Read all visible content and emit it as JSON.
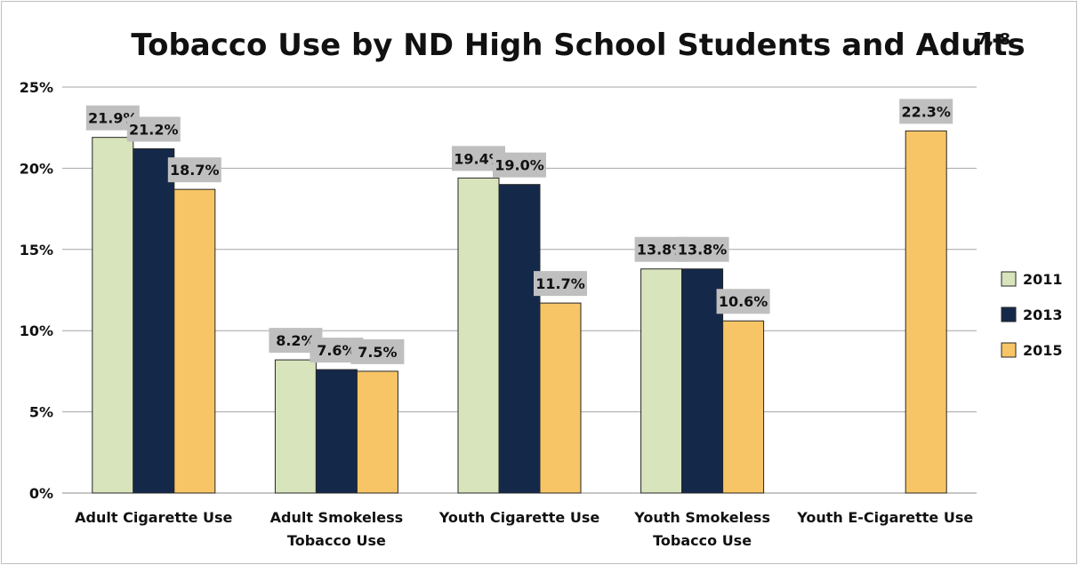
{
  "chart_data": {
    "type": "bar",
    "title": "Tobacco Use by ND High School Students and Adults",
    "title_superscript": "7, 8",
    "categories": [
      [
        "Adult Cigarette Use"
      ],
      [
        "Adult Smokeless",
        "Tobacco Use"
      ],
      [
        "Youth Cigarette Use"
      ],
      [
        "Youth Smokeless",
        "Tobacco Use"
      ],
      [
        "Youth E-Cigarette Use"
      ]
    ],
    "series": [
      {
        "name": "2011",
        "color": "#d8e4bc",
        "values": [
          21.9,
          8.2,
          19.4,
          13.8,
          null
        ],
        "labels": [
          "21.9%",
          "8.2%",
          "19.4%",
          "13.8%",
          null
        ]
      },
      {
        "name": "2013",
        "color": "#14294a",
        "values": [
          21.2,
          7.6,
          19.0,
          13.8,
          null
        ],
        "labels": [
          "21.2%",
          "7.6%",
          "19.0%",
          "13.8%",
          null
        ]
      },
      {
        "name": "2015",
        "color": "#f7c566",
        "values": [
          18.7,
          7.5,
          11.7,
          10.6,
          22.3
        ],
        "labels": [
          "18.7%",
          "7.5%",
          "11.7%",
          "10.6%",
          "22.3%"
        ]
      }
    ],
    "y_ticks": [
      {
        "value": 0,
        "label": "0%"
      },
      {
        "value": 5,
        "label": "5%"
      },
      {
        "value": 10,
        "label": "10%"
      },
      {
        "value": 15,
        "label": "15%"
      },
      {
        "value": 20,
        "label": "20%"
      },
      {
        "value": 25,
        "label": "25%"
      }
    ],
    "ylim": [
      0,
      25
    ],
    "grid": true,
    "legend_position": "right"
  }
}
